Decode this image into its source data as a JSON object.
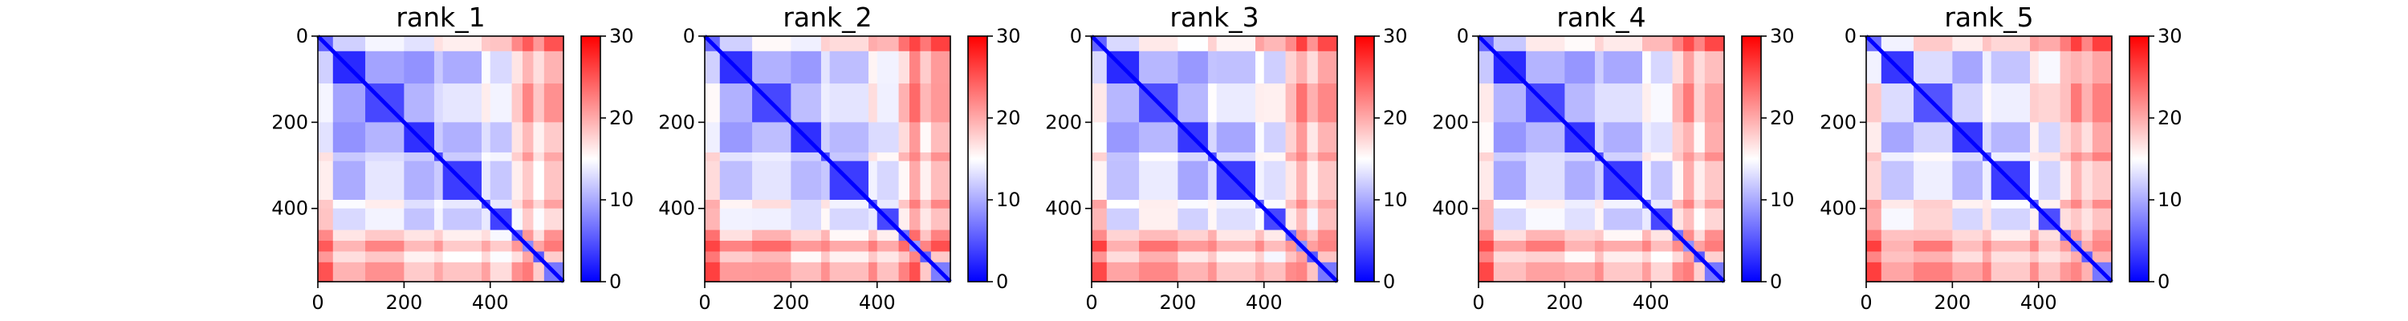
{
  "chart_data": [
    {
      "type": "heatmap",
      "title": "rank_1",
      "n": 570,
      "xticks": [
        0,
        200,
        400
      ],
      "yticks": [
        0,
        200,
        400
      ],
      "colorbar": {
        "min": 0,
        "max": 30,
        "ticks": [
          0,
          10,
          20,
          30
        ]
      },
      "colormap": [
        "#0000ff",
        "#ffffff",
        "#ff0000"
      ],
      "segments": [
        0,
        35,
        110,
        200,
        270,
        290,
        380,
        400,
        450,
        475,
        500,
        525,
        570
      ],
      "profile": [
        16,
        7,
        12,
        8,
        13,
        10,
        15,
        11,
        18,
        23,
        15,
        20
      ]
    },
    {
      "type": "heatmap",
      "title": "rank_2",
      "n": 570,
      "xticks": [
        0,
        200,
        400
      ],
      "yticks": [
        0,
        200,
        400
      ],
      "colorbar": {
        "min": 0,
        "max": 30,
        "ticks": [
          0,
          10,
          20,
          30
        ]
      },
      "colormap": [
        "#0000ff",
        "#ffffff",
        "#ff0000"
      ],
      "segments": [
        0,
        35,
        110,
        200,
        270,
        290,
        380,
        400,
        450,
        475,
        500,
        525,
        570
      ],
      "profile": [
        17,
        8,
        12,
        8,
        14,
        10,
        16,
        12,
        19,
        26,
        16,
        21
      ]
    },
    {
      "type": "heatmap",
      "title": "rank_3",
      "n": 570,
      "xticks": [
        0,
        200,
        400
      ],
      "yticks": [
        0,
        200,
        400
      ],
      "colorbar": {
        "min": 0,
        "max": 30,
        "ticks": [
          0,
          10,
          20,
          30
        ]
      },
      "colormap": [
        "#0000ff",
        "#ffffff",
        "#ff0000"
      ],
      "segments": [
        0,
        35,
        110,
        200,
        270,
        290,
        380,
        400,
        450,
        475,
        500,
        525,
        570
      ],
      "profile": [
        17,
        7,
        13,
        9,
        14,
        10,
        16,
        12,
        19,
        24,
        15,
        20
      ]
    },
    {
      "type": "heatmap",
      "title": "rank_4",
      "n": 570,
      "xticks": [
        0,
        200,
        400
      ],
      "yticks": [
        0,
        200,
        400
      ],
      "colorbar": {
        "min": 0,
        "max": 30,
        "ticks": [
          0,
          10,
          20,
          30
        ]
      },
      "colormap": [
        "#0000ff",
        "#ffffff",
        "#ff0000"
      ],
      "segments": [
        0,
        35,
        110,
        200,
        270,
        290,
        380,
        400,
        450,
        475,
        500,
        525,
        570
      ],
      "profile": [
        17,
        7,
        12,
        9,
        14,
        10,
        16,
        12,
        19,
        24,
        15,
        20
      ]
    },
    {
      "type": "heatmap",
      "title": "rank_5",
      "n": 570,
      "xticks": [
        0,
        200,
        400
      ],
      "yticks": [
        0,
        200,
        400
      ],
      "colorbar": {
        "min": 0,
        "max": 30,
        "ticks": [
          0,
          10,
          20,
          30
        ]
      },
      "colormap": [
        "#0000ff",
        "#ffffff",
        "#ff0000"
      ],
      "segments": [
        0,
        35,
        110,
        200,
        270,
        290,
        380,
        400,
        450,
        475,
        500,
        525,
        570
      ],
      "profile": [
        18,
        9,
        14,
        9,
        15,
        10,
        17,
        13,
        18,
        22,
        16,
        20
      ]
    }
  ]
}
